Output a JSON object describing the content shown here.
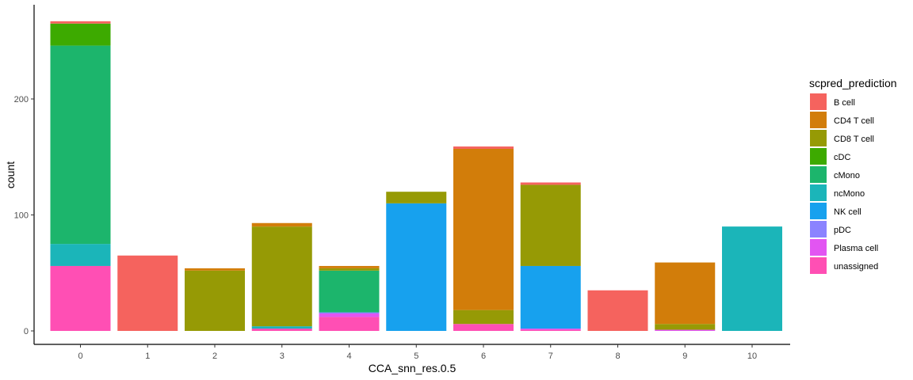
{
  "chart_data": {
    "type": "bar",
    "stacked": true,
    "xlabel": "CCA_snn_res.0.5",
    "ylabel": "count",
    "ylim": [
      0,
      268
    ],
    "yticks": [
      0,
      100,
      200
    ],
    "grid": false,
    "legend_position": "right",
    "legend_title": "scpred_prediction",
    "categories": [
      "0",
      "1",
      "2",
      "3",
      "4",
      "5",
      "6",
      "7",
      "8",
      "9",
      "10"
    ],
    "series": [
      {
        "name": "unassigned",
        "color": "#FF4FB4",
        "values": [
          56,
          0,
          0,
          2,
          12,
          0,
          6,
          1,
          0,
          0,
          0
        ]
      },
      {
        "name": "Plasma cell",
        "color": "#E255F2",
        "values": [
          0,
          0,
          0,
          0,
          3,
          0,
          0,
          1,
          0,
          1,
          0
        ]
      },
      {
        "name": "pDC",
        "color": "#8B83FF",
        "values": [
          0,
          0,
          0,
          0,
          1,
          0,
          0,
          0,
          0,
          0,
          0
        ]
      },
      {
        "name": "NK cell",
        "color": "#17A1EE",
        "values": [
          0,
          0,
          0,
          0,
          0,
          110,
          0,
          54,
          0,
          0,
          0
        ]
      },
      {
        "name": "ncMono",
        "color": "#1BB5B9",
        "values": [
          19,
          0,
          0,
          2,
          0,
          0,
          0,
          0,
          0,
          0,
          90
        ]
      },
      {
        "name": "cMono",
        "color": "#1CB56C",
        "values": [
          171,
          0,
          0,
          0,
          36,
          0,
          0,
          0,
          0,
          0,
          0
        ]
      },
      {
        "name": "cDC",
        "color": "#3DAA00",
        "values": [
          19,
          0,
          0,
          0,
          0,
          0,
          0,
          0,
          0,
          0,
          0
        ]
      },
      {
        "name": "CD8 T cell",
        "color": "#969A05",
        "values": [
          0,
          0,
          52,
          86,
          2,
          10,
          12,
          70,
          0,
          5,
          0
        ]
      },
      {
        "name": "CD4 T cell",
        "color": "#D27D0A",
        "values": [
          0,
          0,
          2,
          3,
          2,
          0,
          139,
          0,
          0,
          53,
          0
        ]
      },
      {
        "name": "B cell",
        "color": "#F5635E",
        "values": [
          2,
          65,
          0,
          0,
          0,
          0,
          2,
          2,
          35,
          0,
          0
        ]
      }
    ],
    "legend_order": [
      "B cell",
      "CD4 T cell",
      "CD8 T cell",
      "cDC",
      "cMono",
      "ncMono",
      "NK cell",
      "pDC",
      "Plasma cell",
      "unassigned"
    ]
  }
}
